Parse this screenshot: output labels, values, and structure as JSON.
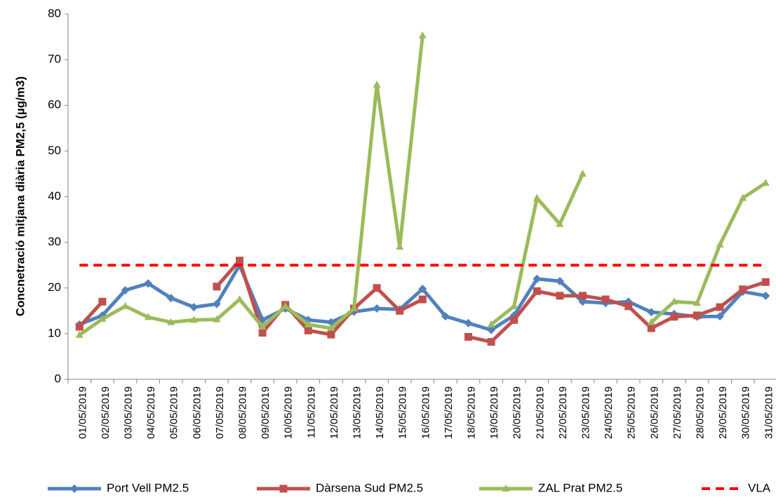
{
  "chart_data": {
    "type": "line",
    "y_label": "Concnetració mitjana diària PM2,5 (µg/m3)",
    "categories": [
      "01/05/2019",
      "02/05/2019",
      "03/05/2019",
      "04/05/2019",
      "05/05/2019",
      "06/05/2019",
      "07/05/2019",
      "08/05/2019",
      "09/05/2019",
      "10/05/2019",
      "11/05/2019",
      "12/05/2019",
      "13/05/2019",
      "14/05/2019",
      "15/05/2019",
      "16/05/2019",
      "17/05/2019",
      "18/05/2019",
      "19/05/2019",
      "20/05/2019",
      "21/05/2019",
      "22/05/2019",
      "23/05/2019",
      "24/05/2019",
      "25/05/2019",
      "26/05/2019",
      "27/05/2019",
      "28/05/2019",
      "29/05/2019",
      "30/05/2019",
      "31/05/2019"
    ],
    "series": [
      {
        "name": "Port Vell PM2.5",
        "color": "#4f81bd",
        "marker": "diamond",
        "values": [
          12,
          14,
          19.5,
          21,
          17.8,
          15.8,
          16.5,
          25,
          13,
          15.5,
          13,
          12.5,
          14.8,
          15.5,
          15.3,
          19.8,
          13.8,
          12.3,
          10.8,
          14,
          22,
          21.5,
          17,
          16.7,
          17,
          14.7,
          14.3,
          13.7,
          13.8,
          19.2,
          18.3
        ]
      },
      {
        "name": "Dàrsena Sud PM2.5",
        "color": "#c0504d",
        "marker": "square",
        "values": [
          11.5,
          17,
          null,
          null,
          null,
          null,
          20.3,
          26,
          10.2,
          16.3,
          10.7,
          9.8,
          15.5,
          20,
          15,
          17.5,
          null,
          9.3,
          8.2,
          13,
          19.3,
          18.3,
          18.3,
          17.5,
          16,
          11.2,
          13.7,
          14,
          15.8,
          19.7,
          21.3
        ]
      },
      {
        "name": "ZAL Prat PM2.5",
        "color": "#9bbb59",
        "marker": "triangle",
        "values": [
          9.7,
          13.2,
          16,
          13.6,
          12.5,
          13,
          13.1,
          17.5,
          11.5,
          16,
          12,
          11.2,
          15.5,
          64.5,
          29,
          75.3,
          null,
          null,
          12,
          16,
          39.7,
          34,
          45,
          null,
          null,
          12.5,
          17,
          16.7,
          29.5,
          39.7,
          43
        ]
      },
      {
        "name": "VLA",
        "color": "#ff0000",
        "dashed": true,
        "values": [
          25,
          25,
          25,
          25,
          25,
          25,
          25,
          25,
          25,
          25,
          25,
          25,
          25,
          25,
          25,
          25,
          25,
          25,
          25,
          25,
          25,
          25,
          25,
          25,
          25,
          25,
          25,
          25,
          25,
          25,
          25
        ]
      }
    ],
    "ylim": [
      0,
      80
    ],
    "yticks": [
      0,
      10,
      20,
      30,
      40,
      50,
      60,
      70,
      80
    ],
    "grid": false,
    "legend": "bottom"
  }
}
